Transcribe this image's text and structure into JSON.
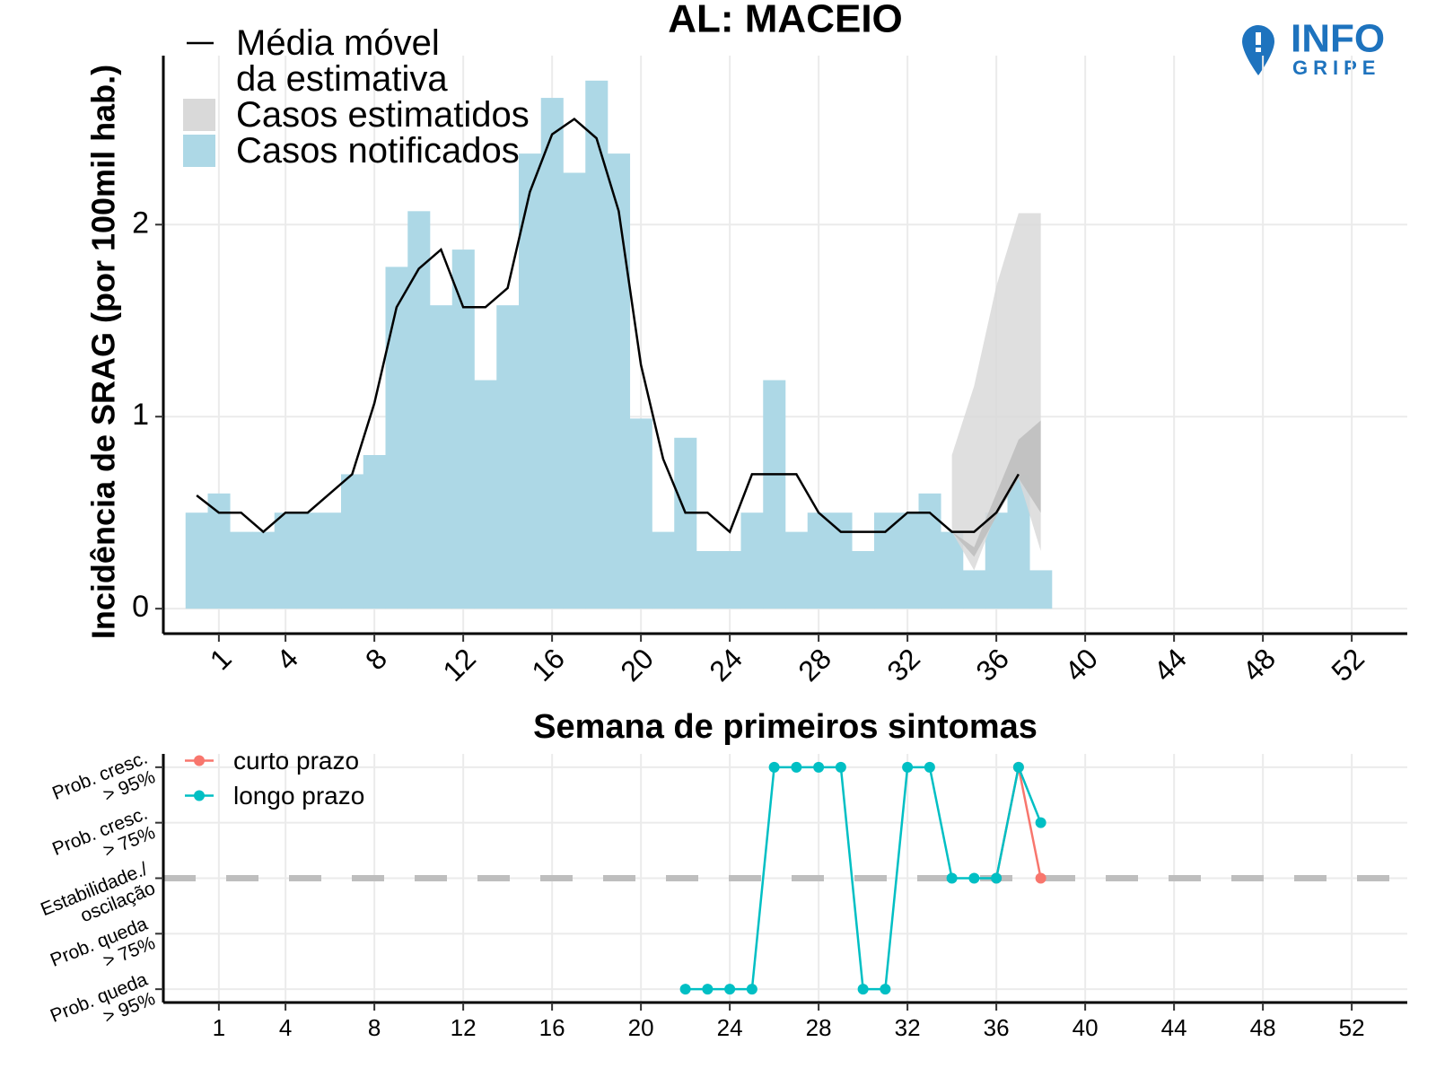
{
  "logo": {
    "title": "INFO",
    "subtitle": "GRIPE"
  },
  "chart_data": [
    {
      "type": "combo",
      "title": "AL: MACEIO",
      "x_label": "Semana de primeiros sintomas",
      "y_label": "Incidência de SRAG (por 100mil hab.)",
      "xlim": [
        -1.5,
        54.5
      ],
      "xticks": [
        1,
        4,
        8,
        12,
        16,
        20,
        24,
        28,
        32,
        36,
        40,
        44,
        48,
        52
      ],
      "ylim": [
        -0.13,
        2.88
      ],
      "yticks": [
        0,
        1,
        2
      ],
      "grid": true,
      "legend": "top-left",
      "series": [
        {
          "name": "Média móvel\nda estimativa",
          "type": "line",
          "color": "#000000",
          "x": [
            0,
            1,
            2,
            3,
            4,
            5,
            6,
            7,
            8,
            9,
            10,
            11,
            12,
            13,
            14,
            15,
            16,
            17,
            18,
            19,
            20,
            21,
            22,
            23,
            24,
            25,
            26,
            27,
            28,
            29,
            30,
            31,
            32,
            33,
            34,
            35,
            36,
            37
          ],
          "values": [
            0.59,
            0.5,
            0.5,
            0.4,
            0.5,
            0.5,
            0.6,
            0.7,
            1.07,
            1.57,
            1.77,
            1.87,
            1.57,
            1.57,
            1.67,
            2.17,
            2.47,
            2.55,
            2.45,
            2.07,
            1.27,
            0.78,
            0.5,
            0.5,
            0.4,
            0.7,
            0.7,
            0.7,
            0.5,
            0.4,
            0.4,
            0.4,
            0.5,
            0.5,
            0.4,
            0.4,
            0.5,
            0.7
          ]
        },
        {
          "name": "Casos estimatidos",
          "type": "band",
          "color": "#d9d9d9",
          "x": [
            34,
            35,
            36,
            37,
            38
          ],
          "lower": [
            0.4,
            0.2,
            0.5,
            0.68,
            0.3
          ],
          "upper": [
            0.8,
            1.16,
            1.68,
            2.06,
            2.06
          ]
        },
        {
          "name": "Casos notificados",
          "type": "bar",
          "color": "#add8e6",
          "x": [
            0,
            1,
            2,
            3,
            4,
            5,
            6,
            7,
            8,
            9,
            10,
            11,
            12,
            13,
            14,
            15,
            16,
            17,
            18,
            19,
            20,
            21,
            22,
            23,
            24,
            25,
            26,
            27,
            28,
            29,
            30,
            31,
            32,
            33,
            34,
            35,
            36,
            37,
            38
          ],
          "values": [
            0.5,
            0.6,
            0.4,
            0.4,
            0.5,
            0.5,
            0.5,
            0.7,
            0.8,
            1.78,
            2.07,
            1.58,
            1.87,
            1.19,
            1.58,
            2.37,
            2.66,
            2.27,
            2.75,
            2.37,
            0.99,
            0.4,
            0.89,
            0.3,
            0.3,
            0.5,
            1.19,
            0.4,
            0.5,
            0.5,
            0.3,
            0.5,
            0.5,
            0.6,
            0.4,
            0.2,
            0.5,
            0.7,
            0.2
          ]
        },
        {
          "type": "band",
          "color": "#bdbdbd",
          "x": [
            34,
            35,
            36,
            37,
            38
          ],
          "lower": [
            0.4,
            0.27,
            0.48,
            0.68,
            0.5
          ],
          "upper": [
            0.4,
            0.32,
            0.6,
            0.88,
            0.98
          ]
        }
      ]
    },
    {
      "type": "line",
      "xlim": [
        -1.5,
        54.5
      ],
      "xticks": [
        1,
        4,
        8,
        12,
        16,
        20,
        24,
        28,
        32,
        36,
        40,
        44,
        48,
        52
      ],
      "ylim": [
        -2.24,
        2.24
      ],
      "yticks": [
        {
          "value": 2,
          "label": "Prob. cresc.\n> 95%"
        },
        {
          "value": 1,
          "label": "Prob. cresc.\n> 75%"
        },
        {
          "value": 0,
          "label": "Estabilidade./\noscilação"
        },
        {
          "value": -1,
          "label": "Prob. queda\n> 75%"
        },
        {
          "value": -2,
          "label": "Prob. queda\n> 95%"
        }
      ],
      "grid": true,
      "legend": "top-left",
      "hline": 0,
      "hline_color": "#bebebe",
      "series": [
        {
          "name": "curto prazo",
          "color": "#f8766d",
          "x": [
            36,
            37,
            38
          ],
          "values": [
            0,
            2,
            0
          ]
        },
        {
          "name": "longo prazo",
          "color": "#00bfc4",
          "x": [
            22,
            23,
            24,
            25,
            26,
            27,
            28,
            29,
            30,
            31,
            32,
            33,
            34,
            35,
            36,
            37,
            38
          ],
          "values": [
            -2,
            -2,
            -2,
            -2,
            2,
            2,
            2,
            2,
            -2,
            -2,
            2,
            2,
            0,
            0,
            0,
            2,
            1
          ]
        }
      ]
    }
  ]
}
